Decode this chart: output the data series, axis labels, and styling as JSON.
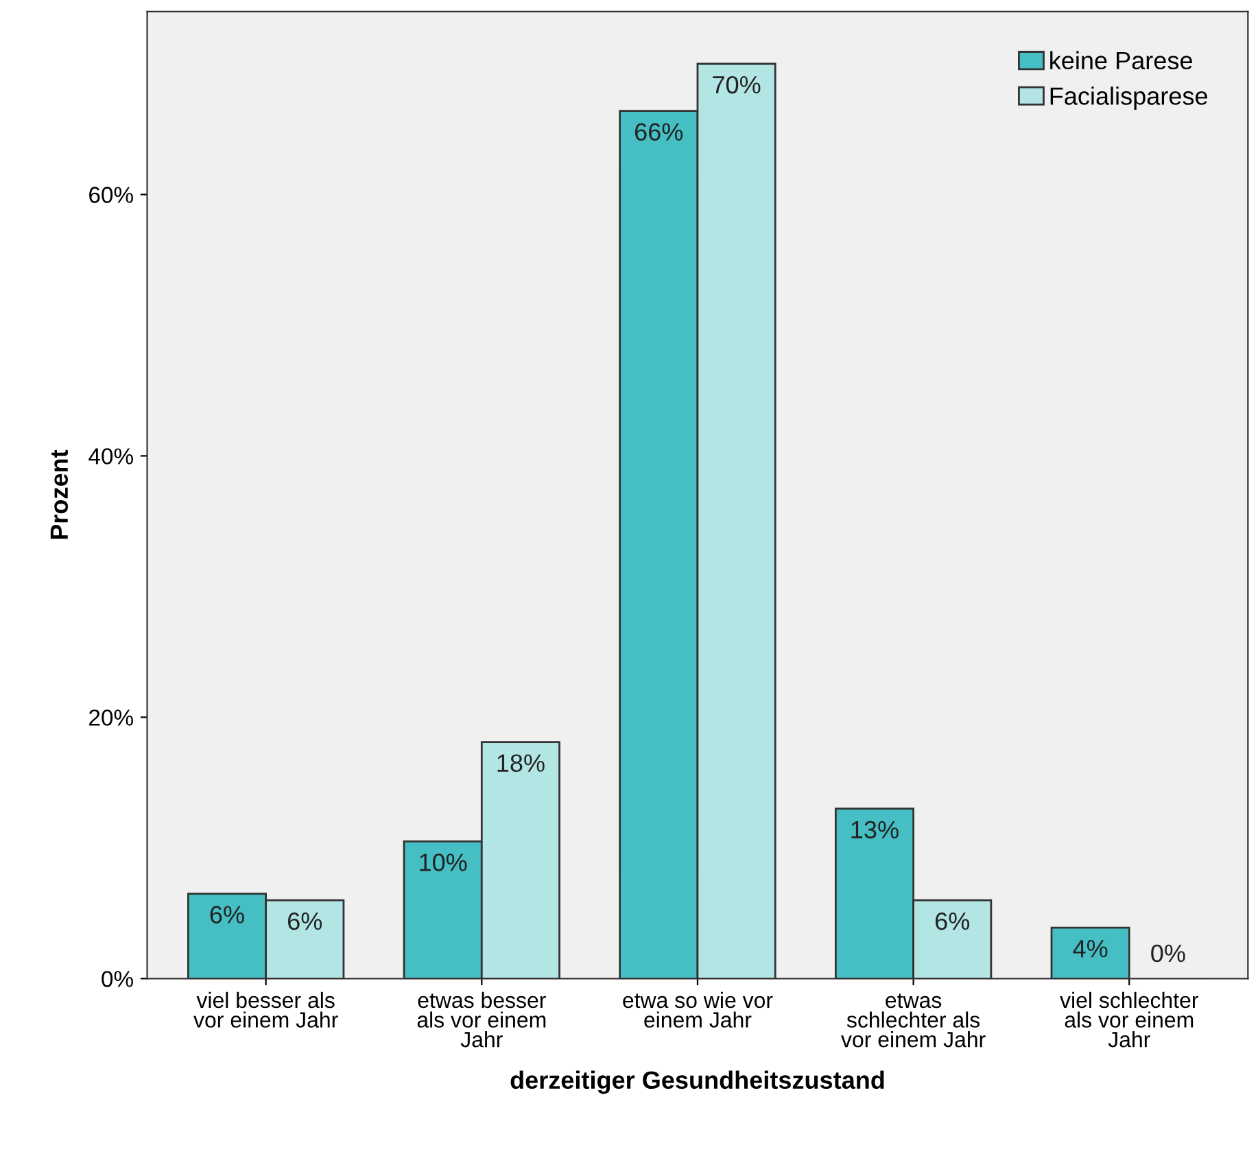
{
  "chart_data": {
    "type": "bar",
    "xlabel": "derzeitiger Gesundheitszustand",
    "ylabel": "Prozent",
    "categories": [
      "viel besser als\nvor einem Jahr",
      "etwas besser\nals vor einem\nJahr",
      "etwa so wie vor\neinem Jahr",
      "etwas\nschlechter als\nvor einem Jahr",
      "viel schlechter\nals vor einem\nJahr"
    ],
    "series": [
      {
        "name": "keine Parese",
        "color": "#45bfc3",
        "values": [
          6.5,
          10.5,
          66.4,
          13.0,
          3.9
        ],
        "value_labels": [
          "6%",
          "10%",
          "66%",
          "13%",
          "4%"
        ]
      },
      {
        "name": "Facialisparese",
        "color": "#b3e5e5",
        "values": [
          6.0,
          18.1,
          70.0,
          6.0,
          0
        ],
        "value_labels": [
          "6%",
          "18%",
          "70%",
          "6%",
          "0%"
        ]
      }
    ],
    "ylim": [
      0,
      74
    ],
    "yticks": [
      {
        "value": 0,
        "label": "0%"
      },
      {
        "value": 20,
        "label": "20%"
      },
      {
        "value": 40,
        "label": "40%"
      },
      {
        "value": 60,
        "label": "60%"
      }
    ],
    "grid": false,
    "legend": "top right"
  }
}
